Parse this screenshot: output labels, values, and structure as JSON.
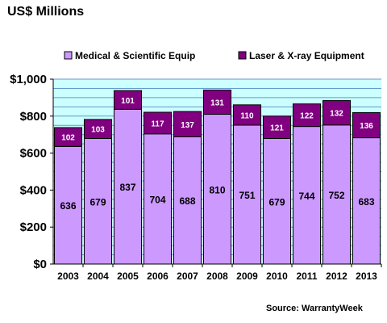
{
  "title": "US$ Millions",
  "source": "Source: WarrantyWeek",
  "chart_data": {
    "type": "bar",
    "stacked": true,
    "categories": [
      "2003",
      "2004",
      "2005",
      "2006",
      "2007",
      "2008",
      "2009",
      "2010",
      "2011",
      "2012",
      "2013"
    ],
    "series": [
      {
        "name": "Medical & Scientific Equip",
        "color": "#cc99ff",
        "values": [
          636,
          679,
          837,
          704,
          688,
          810,
          751,
          679,
          744,
          752,
          683
        ]
      },
      {
        "name": "Laser & X-ray Equipment",
        "color": "#800080",
        "values": [
          102,
          103,
          101,
          117,
          137,
          131,
          110,
          121,
          122,
          132,
          136
        ]
      }
    ],
    "y_ticks": [
      "$0",
      "$200",
      "$400",
      "$600",
      "$800",
      "$1,000"
    ],
    "ylim": [
      0,
      1000
    ],
    "grid": true,
    "legend": "top",
    "colors": {
      "plot_background": "#ccffff",
      "gridline": "#6699cc"
    }
  }
}
